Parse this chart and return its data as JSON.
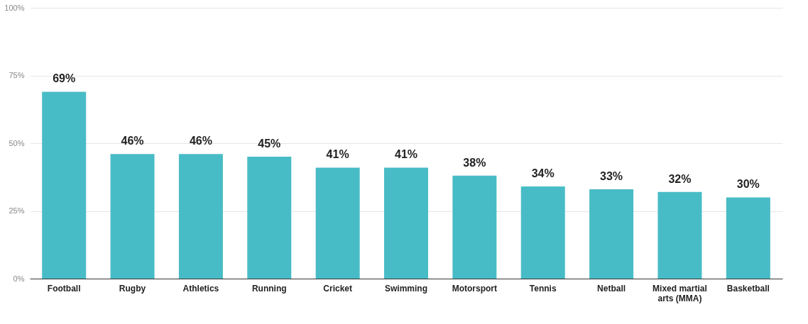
{
  "chart_data": {
    "type": "bar",
    "categories": [
      "Football",
      "Rugby",
      "Athletics",
      "Running",
      "Cricket",
      "Swimming",
      "Motorsport",
      "Tennis",
      "Netball",
      "Mixed martial arts (MMA)",
      "Basketball"
    ],
    "values": [
      69,
      46,
      46,
      45,
      41,
      41,
      38,
      34,
      33,
      32,
      30
    ],
    "value_labels": [
      "69%",
      "46%",
      "46%",
      "45%",
      "41%",
      "41%",
      "38%",
      "34%",
      "33%",
      "32%",
      "30%"
    ],
    "color": "#48bcc6",
    "ylim": [
      0,
      100
    ],
    "yticks": [
      {
        "value": 0,
        "label": "0%"
      },
      {
        "value": 25,
        "label": "25%"
      },
      {
        "value": 50,
        "label": "50%"
      },
      {
        "value": 75,
        "label": "75%"
      },
      {
        "value": 100,
        "label": "100%"
      }
    ],
    "grid": "y"
  }
}
